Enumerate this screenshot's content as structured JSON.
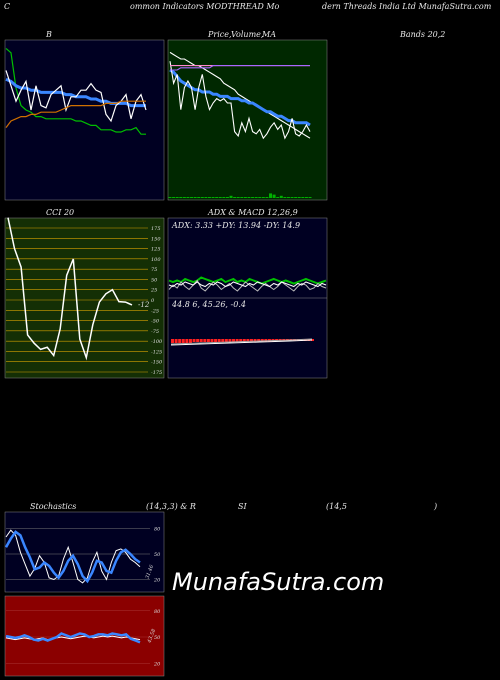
{
  "header": {
    "part1": "C",
    "part2": "ommon  Indicators MODTHREAD Mo",
    "part3": "dern  Threads India  Ltd MunafaSutra.com"
  },
  "panel_titles": {
    "bollinger": "B",
    "price_a": "Price,",
    "price_b": "Volume,",
    "price_c": "MA",
    "bands": "Bands 20,2",
    "cci": "CCI 20",
    "adx_macd": "ADX  &  MACD 12,26,9",
    "stoch_a": "Stochastics",
    "stoch_b": "(14,3,3) & R",
    "stoch_c": "SI",
    "stoch_d": "(14,5",
    "stoch_e": ")"
  },
  "adx_text": "ADX: 3.33  +DY: 13.94  -DY: 14.9",
  "macd_text": "44.8                        6,  45.26,  -0.4",
  "cci_last_label": "-12",
  "stoch_last_label": "31.46",
  "rsi_last_label": "43.58",
  "watermark": "MunafaSutra.com",
  "colors": {
    "panel_dark": "#000022",
    "panel_green": "#002800",
    "cci_bg": "#142f05",
    "rsi_bg": "#8b0000",
    "grid_yellow": "#d4a000",
    "blue": "#3a86ff",
    "white": "#ffffff",
    "green": "#00c000",
    "orange": "#d07000",
    "red": "#ff2020"
  },
  "chart_data": [
    {
      "type": "line",
      "name_key": "bollinger",
      "series": [
        {
          "color": "green",
          "values": [
            48,
            46,
            30,
            22,
            20,
            19,
            17,
            17,
            16,
            16,
            16,
            16,
            16,
            16,
            15,
            15,
            14,
            13,
            13,
            11,
            11,
            11,
            10,
            10,
            11,
            11,
            12,
            9,
            9
          ]
        },
        {
          "color": "blue",
          "values": [
            34,
            33,
            31,
            30,
            30,
            29,
            29,
            28,
            28,
            28,
            28,
            28,
            27,
            27,
            26,
            26,
            26,
            25,
            25,
            24,
            24,
            23,
            23,
            23,
            23,
            22,
            22,
            22,
            22
          ]
        },
        {
          "color": "white",
          "values": [
            38,
            31,
            24,
            29,
            33,
            20,
            31,
            22,
            21,
            27,
            29,
            31,
            20,
            26,
            26,
            29,
            29,
            32,
            29,
            28,
            18,
            15,
            22,
            24,
            27,
            16,
            24,
            27,
            20
          ]
        },
        {
          "color": "orange",
          "values": [
            12,
            15,
            16,
            17,
            17,
            18,
            18,
            19,
            19,
            19,
            19,
            20,
            21,
            22,
            22,
            22,
            22,
            22,
            22,
            22,
            23,
            23,
            23,
            24,
            24,
            24,
            24,
            24,
            24
          ]
        }
      ]
    },
    {
      "type": "line",
      "name_key": "price",
      "series": [
        {
          "color": "white",
          "values": [
            48,
            47,
            46,
            45,
            45,
            44,
            43,
            42,
            42,
            41,
            40,
            39,
            38,
            37,
            36,
            34,
            33,
            32,
            31,
            29,
            28,
            27,
            26,
            25,
            24,
            23,
            22,
            21,
            20,
            19,
            18,
            17,
            16,
            15,
            14,
            13,
            12,
            11,
            10,
            9
          ]
        },
        {
          "color": "blue",
          "values": [
            40,
            39,
            37,
            35,
            34,
            33,
            32,
            31,
            31,
            30,
            30,
            30,
            29,
            29,
            28,
            28,
            28,
            27,
            27,
            27,
            26,
            26,
            25,
            25,
            24,
            23,
            22,
            21,
            21,
            20,
            19,
            19,
            18,
            17,
            17,
            16,
            16,
            16,
            16,
            15
          ]
        },
        {
          "color": "white",
          "values": [
            44,
            34,
            38,
            22,
            32,
            35,
            32,
            22,
            32,
            38,
            28,
            22,
            25,
            27,
            26,
            27,
            25,
            25,
            12,
            10,
            16,
            12,
            18,
            12,
            11,
            13,
            9,
            11,
            14,
            16,
            13,
            15,
            9,
            12,
            18,
            11,
            10,
            12,
            15,
            12
          ]
        },
        {
          "color": "pink",
          "values": [
            42,
            42,
            42,
            42,
            42,
            42,
            42,
            42,
            42,
            42,
            42,
            42,
            42,
            42,
            42,
            42,
            42,
            42,
            42,
            42,
            42,
            42,
            42,
            42,
            42,
            42,
            42,
            42,
            42,
            42,
            42,
            42,
            42,
            42,
            42,
            42,
            42,
            42,
            42,
            42
          ]
        },
        {
          "color": "purple",
          "values": [
            40,
            40,
            40,
            41,
            41,
            41,
            41,
            41,
            41,
            41,
            41,
            41,
            42,
            42,
            42,
            42,
            42,
            42,
            42,
            42,
            42,
            42,
            42,
            42,
            42,
            42,
            42,
            42,
            42,
            42,
            42,
            42,
            42,
            42,
            42,
            42,
            42,
            42,
            42,
            42
          ]
        }
      ],
      "volume": [
        0,
        0,
        0,
        0,
        0,
        0,
        0,
        0,
        0,
        0,
        0,
        0,
        0,
        0,
        0,
        0,
        0,
        1,
        0,
        0,
        0,
        0,
        0,
        0,
        0,
        0,
        0,
        0,
        3,
        2,
        0,
        1,
        0,
        0,
        0,
        0,
        0,
        0,
        0,
        0
      ]
    },
    {
      "type": "line",
      "name_key": "cci",
      "yticks": [
        175,
        150,
        125,
        100,
        75,
        50,
        25,
        0,
        -25,
        -50,
        -75,
        -100,
        -125,
        -150,
        -175
      ],
      "values": [
        200,
        125,
        80,
        -85,
        -105,
        -120,
        -115,
        -135,
        -70,
        60,
        100,
        -95,
        -140,
        -60,
        -5,
        15,
        25,
        -4,
        -5,
        -12
      ],
      "last_label": -12
    },
    {
      "type": "line",
      "name_key": "adx",
      "series": [
        {
          "color": "green",
          "values": [
            53,
            52,
            53,
            52,
            54,
            53,
            52,
            53,
            55,
            54,
            53,
            52,
            53,
            54,
            52,
            53,
            54,
            52,
            53,
            52,
            54,
            53,
            52,
            51,
            52,
            53,
            54,
            53,
            52,
            53,
            52,
            51,
            52,
            53,
            54,
            53,
            52,
            51,
            52,
            53
          ]
        },
        {
          "color": "gray",
          "values": [
            47,
            50,
            48,
            52,
            49,
            47,
            50,
            53,
            48,
            46,
            49,
            52,
            50,
            47,
            49,
            51,
            48,
            46,
            49,
            52,
            50,
            48,
            46,
            49,
            51,
            49,
            47,
            49,
            52,
            50,
            48,
            46,
            49,
            51,
            50,
            47,
            48,
            51,
            49,
            48
          ]
        },
        {
          "color": "white",
          "values": [
            50,
            49,
            51,
            50,
            52,
            51,
            50,
            52,
            50,
            49,
            51,
            50,
            52,
            51,
            49,
            50,
            52,
            51,
            50,
            49,
            51,
            50,
            52,
            51,
            50,
            49,
            51,
            50,
            52,
            51,
            50,
            49,
            51,
            50,
            52,
            51,
            50,
            49,
            51,
            50
          ]
        }
      ]
    },
    {
      "type": "bar",
      "name_key": "macd",
      "values": [
        -3,
        -3,
        -3,
        -3,
        -3,
        -3,
        -2,
        -2,
        -2,
        -2,
        -2,
        -2,
        -2,
        -2,
        -2,
        -2,
        -2,
        -2,
        -2,
        -2,
        -2,
        -2,
        -2,
        -2,
        -2,
        -2,
        -2,
        -2,
        -2,
        -1,
        -1,
        -1,
        -1,
        -1,
        -1,
        -1,
        -1,
        -1,
        -1,
        -1
      ]
    },
    {
      "type": "line",
      "name_key": "stochastics",
      "yticks": [
        80,
        50,
        20
      ],
      "series": [
        {
          "color": "white",
          "values": [
            70,
            78,
            72,
            52,
            38,
            24,
            33,
            48,
            40,
            22,
            20,
            24,
            44,
            58,
            40,
            20,
            16,
            22,
            40,
            52,
            30,
            20,
            40,
            54,
            56,
            52,
            44,
            40,
            35
          ]
        },
        {
          "color": "blue",
          "values": [
            58,
            68,
            76,
            72,
            58,
            46,
            32,
            34,
            40,
            36,
            28,
            22,
            30,
            42,
            48,
            38,
            24,
            18,
            28,
            42,
            40,
            30,
            28,
            42,
            52,
            55,
            50,
            44,
            40
          ]
        }
      ],
      "last_label": 31.46
    },
    {
      "type": "line",
      "name_key": "rsi",
      "yticks": [
        80,
        50,
        20
      ],
      "series": [
        {
          "color": "white",
          "values": [
            49,
            48,
            47,
            48,
            49,
            48,
            47,
            48,
            49,
            47,
            48,
            49,
            50,
            49,
            48,
            49,
            50,
            51,
            50,
            49,
            50,
            51,
            50,
            51,
            50,
            49,
            50,
            49,
            48,
            47
          ]
        },
        {
          "color": "blue",
          "values": [
            51,
            50,
            49,
            50,
            52,
            50,
            47,
            46,
            48,
            46,
            48,
            50,
            54,
            52,
            50,
            52,
            54,
            53,
            50,
            51,
            53,
            53,
            52,
            54,
            53,
            52,
            53,
            48,
            46,
            44
          ]
        }
      ],
      "last_label": 43.58
    }
  ]
}
